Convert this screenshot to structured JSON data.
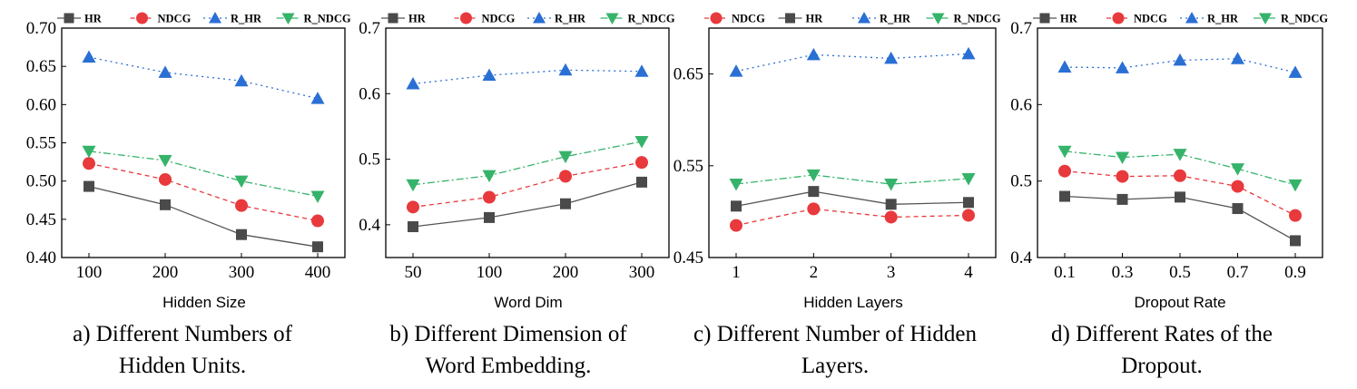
{
  "colors": {
    "HR": "#4a4a4a",
    "NDCG": "#e8393c",
    "R_HR": "#2a6fd4",
    "R_NDCG": "#36b36a"
  },
  "markers": {
    "HR": "square",
    "NDCG": "circle",
    "R_HR": "triangle-up",
    "R_NDCG": "triangle-down"
  },
  "chart_data": [
    {
      "type": "line",
      "xlabel": "Hidden Size",
      "caption": [
        "a) Different Numbers of",
        "Hidden Units."
      ],
      "categories": [
        "100",
        "200",
        "300",
        "400"
      ],
      "ylim": [
        0.4,
        0.7
      ],
      "yticks": [
        "0.40",
        "0.45",
        "0.50",
        "0.55",
        "0.60",
        "0.65",
        "0.70"
      ],
      "legend": [
        "HR",
        "NDCG",
        "R_HR",
        "R_NDCG"
      ],
      "series": [
        {
          "name": "HR",
          "values": [
            0.493,
            0.469,
            0.43,
            0.414
          ]
        },
        {
          "name": "NDCG",
          "values": [
            0.523,
            0.502,
            0.468,
            0.448
          ]
        },
        {
          "name": "R_HR",
          "values": [
            0.662,
            0.642,
            0.631,
            0.608
          ]
        },
        {
          "name": "R_NDCG",
          "values": [
            0.539,
            0.527,
            0.5,
            0.48
          ]
        }
      ]
    },
    {
      "type": "line",
      "xlabel": "Word Dim",
      "caption": [
        "b) Different Dimension of",
        "Word Embedding."
      ],
      "categories": [
        "50",
        "100",
        "200",
        "300"
      ],
      "ylim": [
        0.35,
        0.7
      ],
      "yticks": [
        "0.4",
        "0.5",
        "0.6",
        "0.7"
      ],
      "legend": [
        "HR",
        "NDCG",
        "R_HR",
        "R_NDCG"
      ],
      "series": [
        {
          "name": "HR",
          "values": [
            0.397,
            0.411,
            0.432,
            0.465
          ]
        },
        {
          "name": "NDCG",
          "values": [
            0.427,
            0.442,
            0.474,
            0.495
          ]
        },
        {
          "name": "R_HR",
          "values": [
            0.615,
            0.628,
            0.636,
            0.634
          ]
        },
        {
          "name": "R_NDCG",
          "values": [
            0.461,
            0.475,
            0.504,
            0.527
          ]
        }
      ]
    },
    {
      "type": "line",
      "xlabel": "Hidden Layers",
      "caption": [
        "c) Different Number of Hidden",
        "Layers."
      ],
      "categories": [
        "1",
        "2",
        "3",
        "4"
      ],
      "ylim": [
        0.45,
        0.7
      ],
      "yticks": [
        "0.45",
        "0.55",
        "0.65"
      ],
      "legend": [
        "NDCG",
        "HR",
        "R_HR",
        "R_NDCG"
      ],
      "series": [
        {
          "name": "NDCG",
          "values": [
            0.485,
            0.503,
            0.494,
            0.496
          ]
        },
        {
          "name": "HR",
          "values": [
            0.506,
            0.522,
            0.508,
            0.51
          ]
        },
        {
          "name": "R_HR",
          "values": [
            0.653,
            0.671,
            0.667,
            0.672
          ]
        },
        {
          "name": "R_NDCG",
          "values": [
            0.53,
            0.54,
            0.53,
            0.536
          ]
        }
      ]
    },
    {
      "type": "line",
      "xlabel": "Dropout Rate",
      "caption": [
        "d) Different Rates of the",
        "Dropout."
      ],
      "categories": [
        "0.1",
        "0.3",
        "0.5",
        "0.7",
        "0.9"
      ],
      "ylim": [
        0.4,
        0.7
      ],
      "yticks": [
        "0.4",
        "0.5",
        "0.6",
        "0.7"
      ],
      "legend": [
        "HR",
        "NDCG",
        "R_HR",
        "R_NDCG"
      ],
      "series": [
        {
          "name": "HR",
          "values": [
            0.48,
            0.476,
            0.479,
            0.464,
            0.422
          ]
        },
        {
          "name": "NDCG",
          "values": [
            0.513,
            0.506,
            0.507,
            0.493,
            0.455
          ]
        },
        {
          "name": "R_HR",
          "values": [
            0.649,
            0.648,
            0.658,
            0.66,
            0.642
          ]
        },
        {
          "name": "R_NDCG",
          "values": [
            0.539,
            0.531,
            0.535,
            0.516,
            0.495
          ]
        }
      ]
    }
  ]
}
